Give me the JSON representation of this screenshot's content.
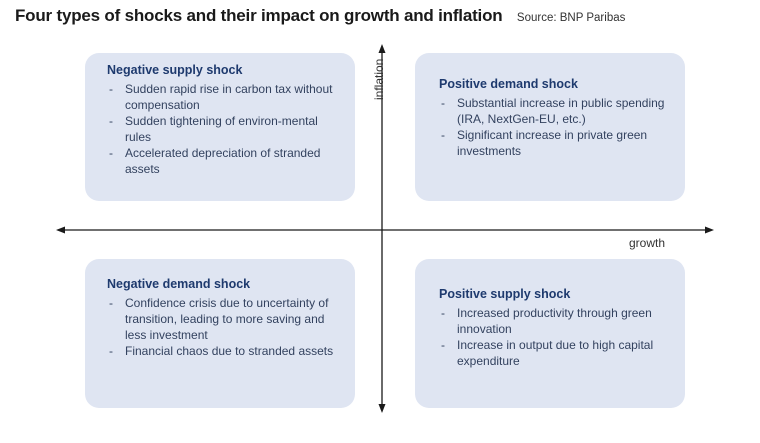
{
  "header": {
    "title": "Four types of shocks and their impact on growth and inflation",
    "source": "Source: BNP Paribas"
  },
  "axes": {
    "x_label": "growth",
    "y_label": "inflation"
  },
  "quadrants": {
    "negative_supply": {
      "title": "Negative supply shock",
      "items": [
        "Sudden rapid rise in carbon tax without compensation",
        "Sudden tightening of environ-mental rules",
        "Accelerated depreciation of stranded assets"
      ]
    },
    "positive_demand": {
      "title": "Positive demand shock",
      "items": [
        "Substantial increase in public spending (IRA, NextGen-EU, etc.)",
        "Significant increase in private green investments"
      ]
    },
    "negative_demand": {
      "title": "Negative demand shock",
      "items": [
        "Confidence crisis due to uncertainty of transition, leading to more saving and less investment",
        "Financial chaos due to stranded assets"
      ]
    },
    "positive_supply": {
      "title": "Positive supply shock",
      "items": [
        "Increased productivity through green innovation",
        "Increase in output due to high capital expenditure"
      ]
    }
  },
  "colors": {
    "box_fill": "#dfe5f2",
    "box_title": "#1e3a6e",
    "axis": "#1a1a1a"
  }
}
